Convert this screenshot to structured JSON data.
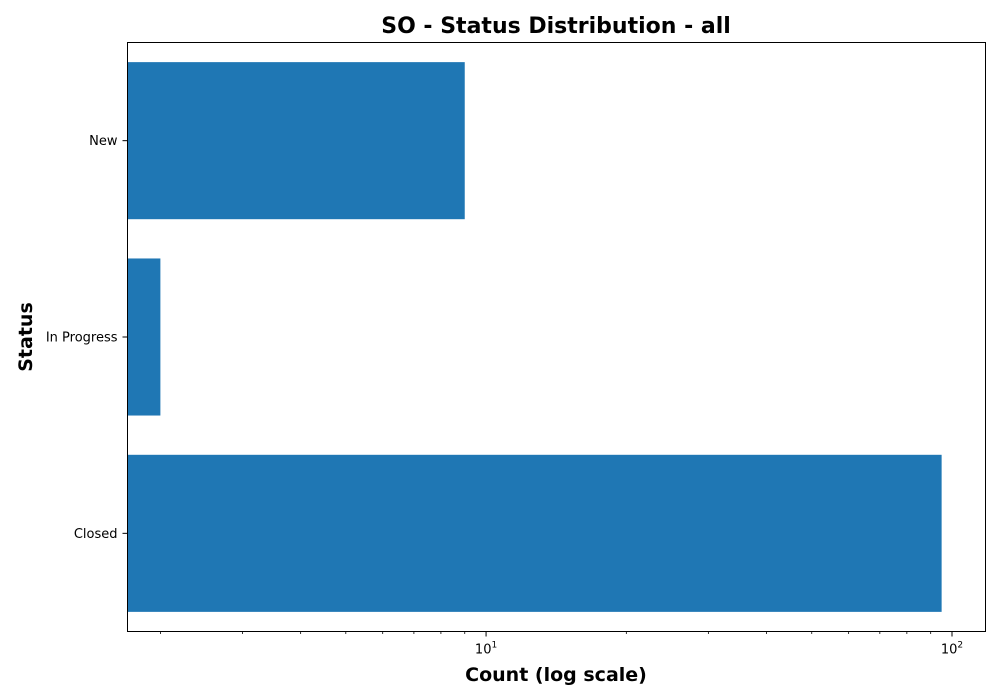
{
  "chart_data": {
    "type": "bar",
    "orientation": "horizontal",
    "title": "SO - Status Distribution - all",
    "xlabel": "Count (log scale)",
    "ylabel": "Status",
    "x_scale": "log",
    "xlim": [
      1.7,
      118
    ],
    "x_tick_labels": [
      {
        "base": "10",
        "exp": "1",
        "value": 10
      },
      {
        "base": "10",
        "exp": "2",
        "value": 100
      }
    ],
    "categories": [
      "New",
      "In Progress",
      "Closed"
    ],
    "values": [
      9,
      2,
      95
    ],
    "bar_color": "#1f77b4",
    "grid": false,
    "legend": "none"
  }
}
